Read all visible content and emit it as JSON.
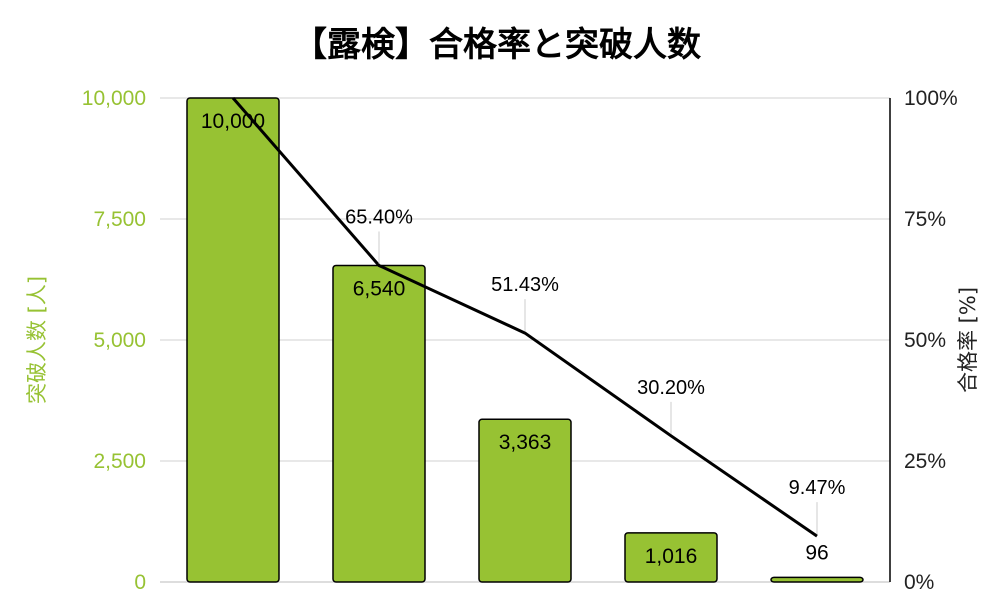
{
  "chart_data": {
    "type": "bar",
    "title": "【露検】合格率と突破人数",
    "ylabel": "突破人数 [人]",
    "y2label": "合格率 [%]",
    "ylim": [
      0,
      10000
    ],
    "y2lim": [
      0,
      100
    ],
    "y_ticks": [
      "0",
      "2,500",
      "5,000",
      "7,500",
      "10,000"
    ],
    "y2_ticks": [
      "0%",
      "25%",
      "50%",
      "75%",
      "100%"
    ],
    "grid": true,
    "series": [
      {
        "values": [
          10000,
          6540,
          3363,
          1016,
          96
        ],
        "labels": [
          "10,000",
          "6,540",
          "3,363",
          "1,016",
          "96"
        ],
        "color": "#97c233"
      },
      {
        "type": "line",
        "values": [
          100,
          65.4,
          51.43,
          30.2,
          9.47
        ],
        "labels": [
          "",
          "65.40%",
          "51.43%",
          "30.20%",
          "9.47%"
        ],
        "color": "#000000"
      }
    ],
    "colors": {
      "bar": "#97c233",
      "left_axis": "#97c233",
      "line": "#000000",
      "grid": "#d0d0d0"
    }
  }
}
